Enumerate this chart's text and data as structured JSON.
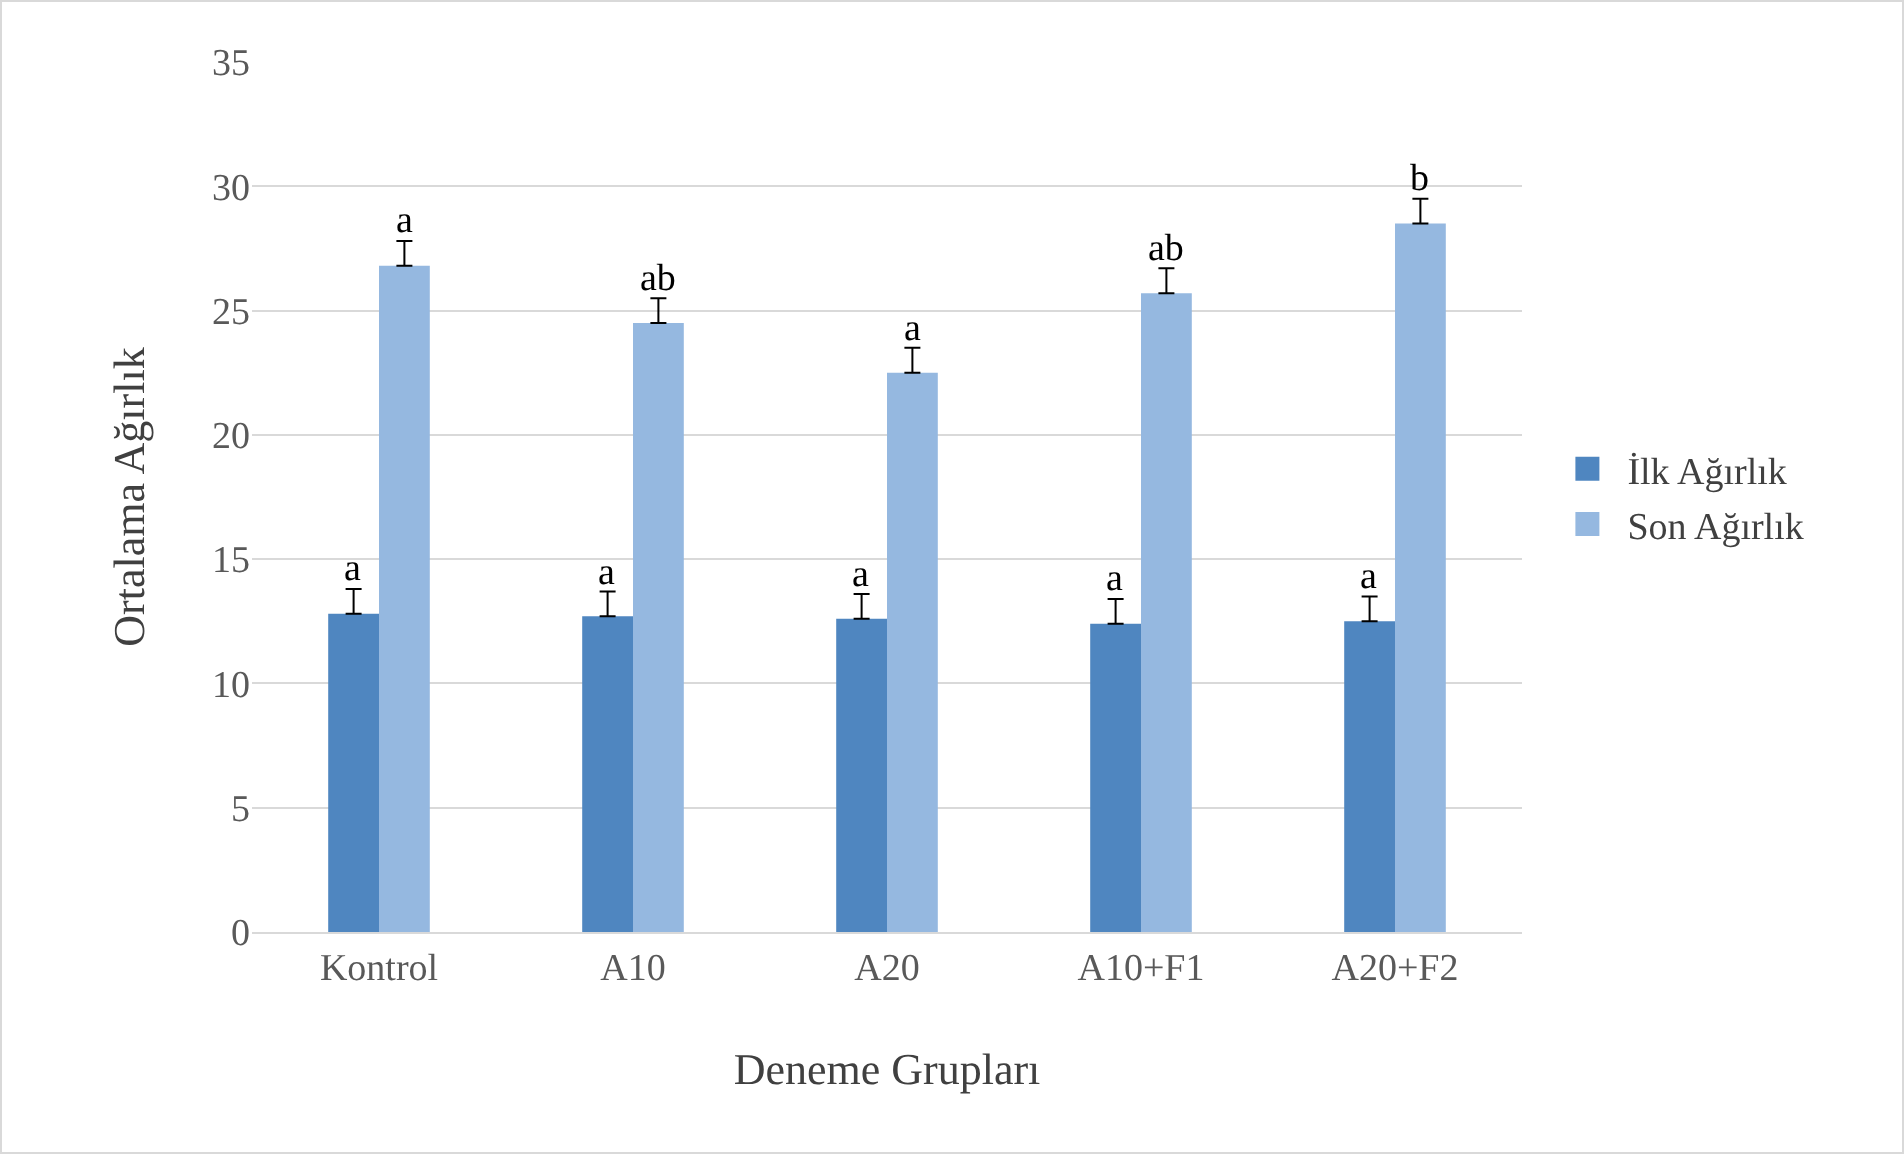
{
  "chart_data": {
    "type": "bar",
    "xlabel": "Deneme Grupları",
    "ylabel": "Ortalama Ağırlık",
    "categories": [
      "Kontrol",
      "A10",
      "A20",
      "A10+F1",
      "A20+F2"
    ],
    "series": [
      {
        "name": "İlk Ağırlık",
        "color": "#4f86c0",
        "values": [
          12.8,
          12.7,
          12.6,
          12.4,
          12.5
        ],
        "errors": [
          [
            12.8,
            13.8
          ],
          [
            12.7,
            13.7
          ],
          [
            12.6,
            13.6
          ],
          [
            12.4,
            13.4
          ],
          [
            12.5,
            13.5
          ]
        ]
      },
      {
        "name": "Son Ağırlık",
        "color": "#95b8e0",
        "values": [
          26.8,
          24.5,
          22.5,
          25.7,
          28.5
        ],
        "errors": [
          [
            26.8,
            27.8
          ],
          [
            24.5,
            25.5
          ],
          [
            22.5,
            23.5
          ],
          [
            25.7,
            26.7
          ],
          [
            28.5,
            29.5
          ]
        ]
      }
    ],
    "ylim": [
      0,
      35
    ],
    "yticks": [
      0,
      5,
      10,
      15,
      20,
      25,
      30,
      35
    ],
    "grid": "y",
    "legend": "right",
    "annotations": [
      {
        "text": "a",
        "x": "Kontrol",
        "y": 12.8
      },
      {
        "text": "a",
        "x": "Kontrol",
        "y": 26.8
      },
      {
        "text": "a",
        "x": "A10",
        "y": 12.7
      },
      {
        "text": "ab",
        "x": "A10",
        "y": 24.5
      },
      {
        "text": "a",
        "x": "A20",
        "y": 12.6
      },
      {
        "text": "a",
        "x": "A20",
        "y": 22.5
      },
      {
        "text": "a",
        "x": "A10+F1",
        "y": 12.4
      },
      {
        "text": "ab",
        "x": "A10+F1",
        "y": 25.7
      },
      {
        "text": "a",
        "x": "A20+F2",
        "y": 12.5
      },
      {
        "text": "b",
        "x": "A20+F2",
        "y": 28.5
      }
    ]
  }
}
